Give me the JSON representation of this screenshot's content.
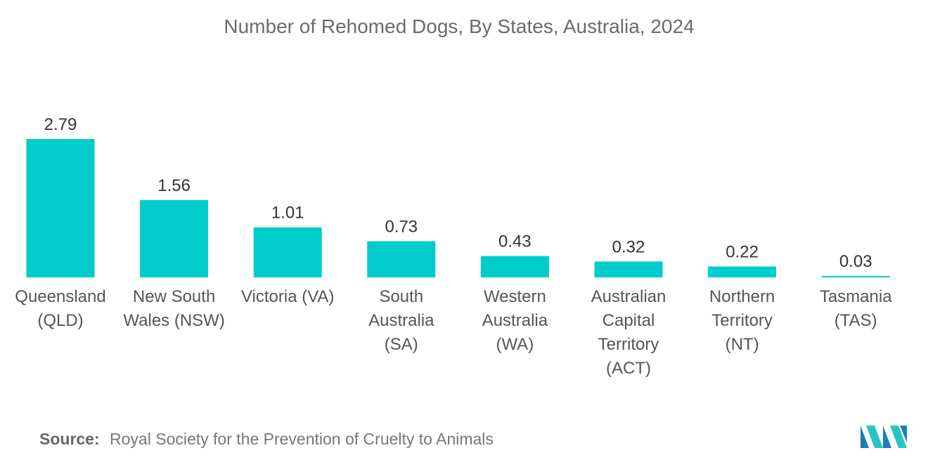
{
  "chart_data": {
    "type": "bar",
    "title": "Number of Rehomed Dogs, By States, Australia, 2024",
    "categories": [
      "Queensland (QLD)",
      "New South Wales (NSW)",
      "Victoria (VA)",
      "South Australia (SA)",
      "Western Australia (WA)",
      "Australian Capital Territory (ACT)",
      "Northern Territory (NT)",
      "Tasmania (TAS)"
    ],
    "category_lines": [
      [
        "Queensland",
        "(QLD)"
      ],
      [
        "New South",
        "Wales (NSW)"
      ],
      [
        "Victoria (VA)"
      ],
      [
        "South",
        "Australia",
        "(SA)"
      ],
      [
        "Western",
        "Australia",
        "(WA)"
      ],
      [
        "Australian",
        "Capital",
        "Territory",
        "(ACT)"
      ],
      [
        "Northern",
        "Territory",
        "(NT)"
      ],
      [
        "Tasmania",
        "(TAS)"
      ]
    ],
    "values": [
      2.79,
      1.56,
      1.01,
      0.73,
      0.43,
      0.32,
      0.22,
      0.03
    ],
    "value_labels": [
      "2.79",
      "1.56",
      "1.01",
      "0.73",
      "0.43",
      "0.32",
      "0.22",
      "0.03"
    ],
    "xlabel": "",
    "ylabel": "",
    "grid": false,
    "legend": "none",
    "bar_color": "#00cccc"
  },
  "source": {
    "label": "Source:",
    "text": "Royal Society for the Prevention of Cruelty to Animals"
  },
  "logo": {
    "icon": "mordor-intelligence-logo-icon",
    "colors": [
      "#1a7fb8",
      "#2bc4c4"
    ]
  }
}
